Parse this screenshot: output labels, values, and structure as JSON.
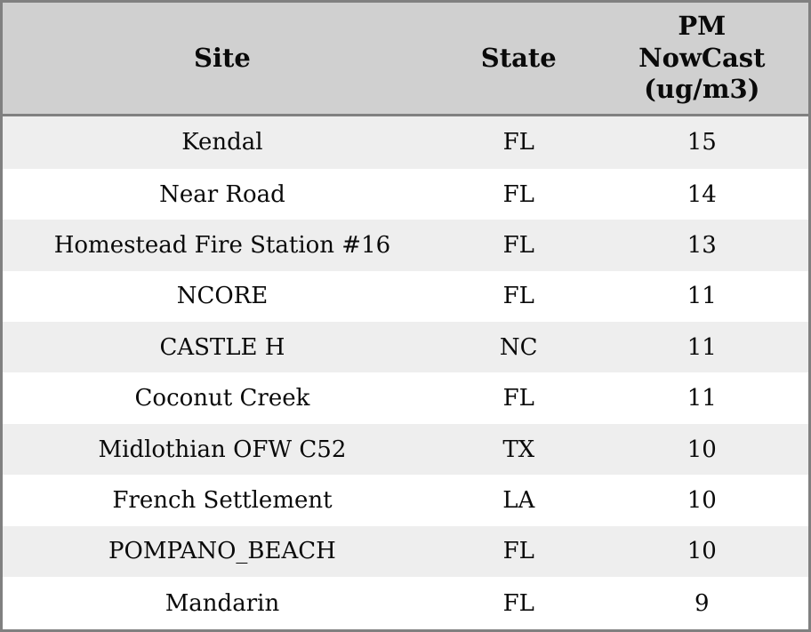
{
  "chart_data": {
    "type": "table",
    "columns": [
      "Site",
      "State",
      "PM NowCast (ug/m3)"
    ],
    "header_labels": {
      "site": "Site",
      "state": "State",
      "pm": "PM\nNowCast\n(ug/m3)"
    },
    "rows": [
      [
        "Kendal",
        "FL",
        "15"
      ],
      [
        "Near Road",
        "FL",
        "14"
      ],
      [
        "Homestead Fire Station #16",
        "FL",
        "13"
      ],
      [
        "NCORE",
        "FL",
        "11"
      ],
      [
        "CASTLE H",
        "NC",
        "11"
      ],
      [
        "Coconut Creek",
        "FL",
        "11"
      ],
      [
        "Midlothian OFW C52",
        "TX",
        "10"
      ],
      [
        "French Settlement",
        "LA",
        "10"
      ],
      [
        "POMPANO_BEACH",
        "FL",
        "10"
      ],
      [
        "Mandarin",
        "FL",
        "9"
      ]
    ]
  },
  "colors": {
    "header_bg": "#d0d0d0",
    "row_stripe_bg": "#eeeeee",
    "row_bg": "#ffffff",
    "border": "#808080",
    "text": "#0a0a0a"
  }
}
